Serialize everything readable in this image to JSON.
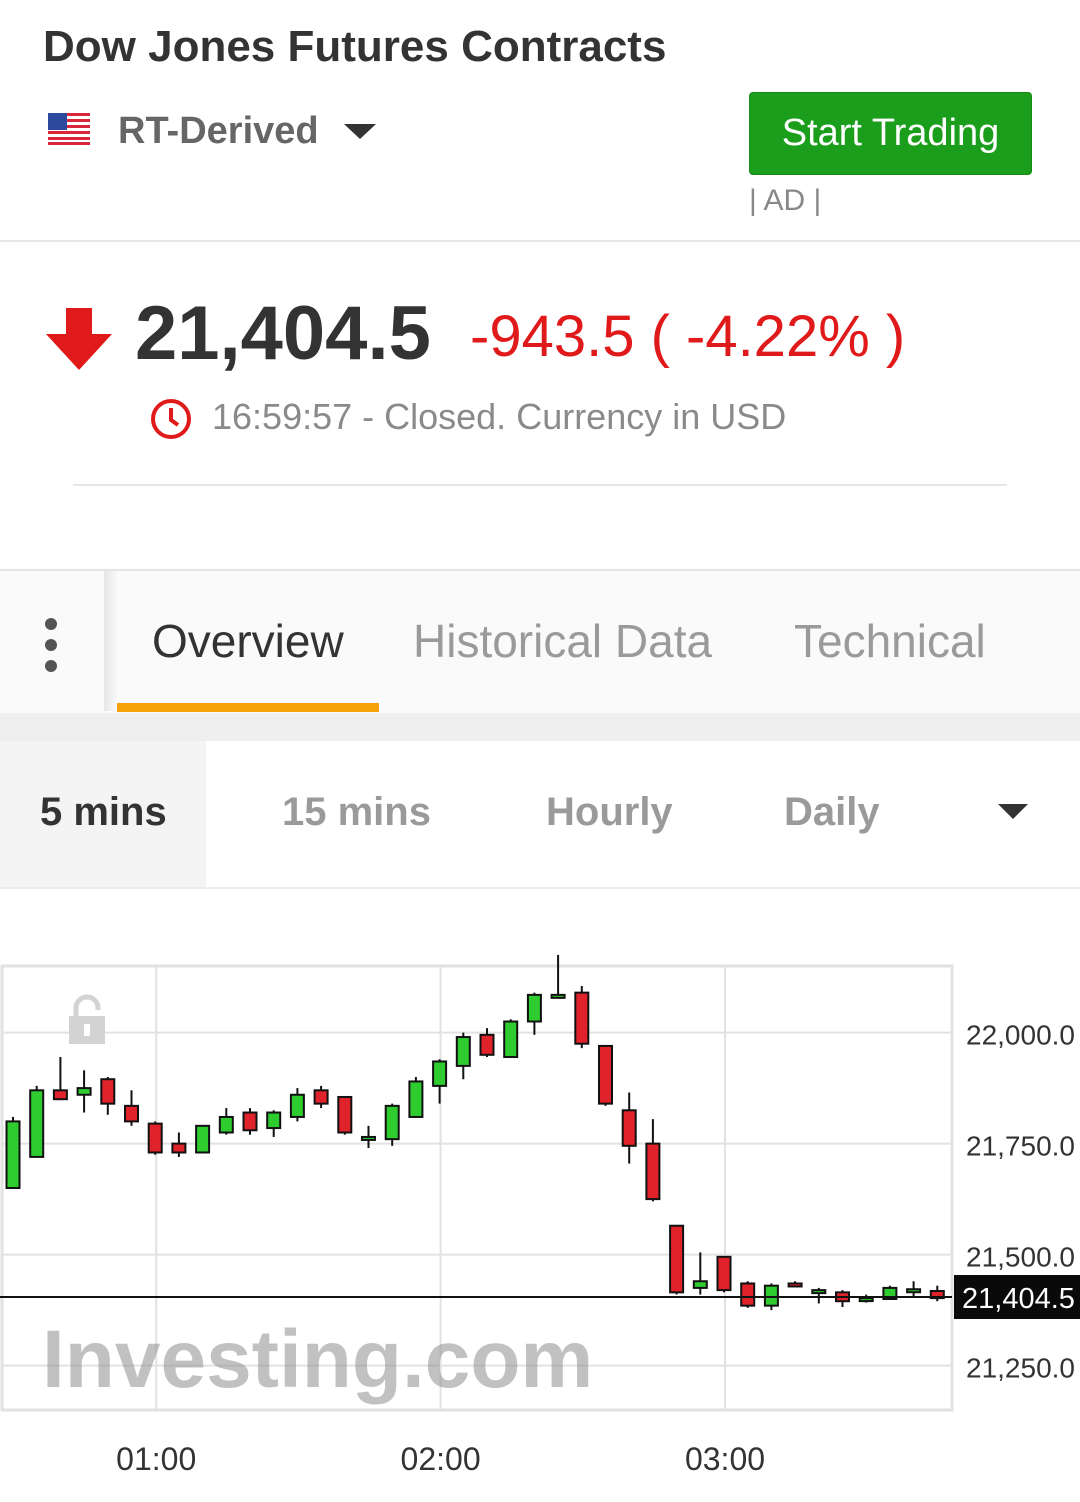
{
  "header": {
    "title": "Dow Jones Futures Contracts",
    "source": "RT-Derived",
    "trade_button": "Start Trading",
    "ad_label": "| AD |"
  },
  "quote": {
    "price": "21,404.5",
    "change": "-943.5 ( -4.22% )",
    "status": "16:59:57 - Closed. Currency in USD",
    "direction_color": "#e01a1a"
  },
  "tabs": [
    {
      "label": "Overview",
      "active": true
    },
    {
      "label": "Historical Data",
      "active": false
    },
    {
      "label": "Technical",
      "active": false
    }
  ],
  "timeframes": [
    {
      "label": "5 mins",
      "active": true
    },
    {
      "label": "15 mins",
      "active": false
    },
    {
      "label": "Hourly",
      "active": false
    },
    {
      "label": "Daily",
      "active": false
    }
  ],
  "colors": {
    "accent": "#f6a20a",
    "button": "#1b9e1b",
    "up": "#2ecc2e",
    "down": "#e0222a"
  },
  "icons": {
    "flag": "us-flag-icon",
    "caret": "caret-down-icon",
    "arrow": "arrow-down-icon",
    "clock": "clock-icon",
    "menu": "kebab-icon",
    "lock": "lock-icon"
  },
  "chart_data": {
    "type": "candlestick",
    "watermark": "Investing.com",
    "x_ticks": [
      "01:00",
      "02:00",
      "03:00"
    ],
    "y_ticks": [
      "22,000.0",
      "21,750.0",
      "21,500.0",
      "21,250.0"
    ],
    "ylim": [
      21150,
      22150
    ],
    "current_price": 21404.5,
    "current_price_label": "21,404.5",
    "grid": true,
    "candles": [
      {
        "t": "00:30",
        "o": 21650,
        "h": 21810,
        "l": 21650,
        "c": 21800
      },
      {
        "t": "00:35",
        "o": 21720,
        "h": 21880,
        "l": 21720,
        "c": 21870
      },
      {
        "t": "00:40",
        "o": 21870,
        "h": 21945,
        "l": 21850,
        "c": 21850
      },
      {
        "t": "00:45",
        "o": 21860,
        "h": 21915,
        "l": 21820,
        "c": 21875
      },
      {
        "t": "00:50",
        "o": 21895,
        "h": 21900,
        "l": 21815,
        "c": 21840
      },
      {
        "t": "00:55",
        "o": 21835,
        "h": 21870,
        "l": 21790,
        "c": 21800
      },
      {
        "t": "01:00",
        "o": 21795,
        "h": 21800,
        "l": 21725,
        "c": 21730
      },
      {
        "t": "01:05",
        "o": 21750,
        "h": 21775,
        "l": 21720,
        "c": 21730
      },
      {
        "t": "01:10",
        "o": 21730,
        "h": 21790,
        "l": 21730,
        "c": 21790
      },
      {
        "t": "01:15",
        "o": 21775,
        "h": 21830,
        "l": 21770,
        "c": 21810
      },
      {
        "t": "01:20",
        "o": 21820,
        "h": 21830,
        "l": 21770,
        "c": 21780
      },
      {
        "t": "01:25",
        "o": 21785,
        "h": 21825,
        "l": 21765,
        "c": 21820
      },
      {
        "t": "01:30",
        "o": 21810,
        "h": 21875,
        "l": 21800,
        "c": 21860
      },
      {
        "t": "01:35",
        "o": 21870,
        "h": 21880,
        "l": 21830,
        "c": 21840
      },
      {
        "t": "01:40",
        "o": 21855,
        "h": 21855,
        "l": 21770,
        "c": 21775
      },
      {
        "t": "01:45",
        "o": 21765,
        "h": 21790,
        "l": 21740,
        "c": 21765
      },
      {
        "t": "01:50",
        "o": 21760,
        "h": 21840,
        "l": 21745,
        "c": 21835
      },
      {
        "t": "01:55",
        "o": 21810,
        "h": 21900,
        "l": 21810,
        "c": 21890
      },
      {
        "t": "02:00",
        "o": 21880,
        "h": 21940,
        "l": 21840,
        "c": 21935
      },
      {
        "t": "02:05",
        "o": 21925,
        "h": 22000,
        "l": 21895,
        "c": 21990
      },
      {
        "t": "02:10",
        "o": 21995,
        "h": 22010,
        "l": 21945,
        "c": 21950
      },
      {
        "t": "02:15",
        "o": 21945,
        "h": 22030,
        "l": 21945,
        "c": 22025
      },
      {
        "t": "02:20",
        "o": 22025,
        "h": 22090,
        "l": 21995,
        "c": 22085
      },
      {
        "t": "02:25",
        "o": 22085,
        "h": 22175,
        "l": 22085,
        "c": 22085
      },
      {
        "t": "02:30",
        "o": 22090,
        "h": 22105,
        "l": 21965,
        "c": 21975
      },
      {
        "t": "02:35",
        "o": 21970,
        "h": 21970,
        "l": 21835,
        "c": 21840
      },
      {
        "t": "02:40",
        "o": 21825,
        "h": 21865,
        "l": 21705,
        "c": 21745
      },
      {
        "t": "02:45",
        "o": 21750,
        "h": 21805,
        "l": 21620,
        "c": 21625
      },
      {
        "t": "02:50",
        "o": 21565,
        "h": 21565,
        "l": 21410,
        "c": 21415
      },
      {
        "t": "02:55",
        "o": 21425,
        "h": 21505,
        "l": 21410,
        "c": 21440
      },
      {
        "t": "03:00",
        "o": 21495,
        "h": 21495,
        "l": 21415,
        "c": 21420
      },
      {
        "t": "03:05",
        "o": 21435,
        "h": 21440,
        "l": 21380,
        "c": 21385
      },
      {
        "t": "03:10",
        "o": 21385,
        "h": 21435,
        "l": 21375,
        "c": 21430
      },
      {
        "t": "03:15",
        "o": 21435,
        "h": 21440,
        "l": 21430,
        "c": 21432
      },
      {
        "t": "03:20",
        "o": 21420,
        "h": 21425,
        "l": 21390,
        "c": 21420
      },
      {
        "t": "03:25",
        "o": 21415,
        "h": 21420,
        "l": 21382,
        "c": 21395
      },
      {
        "t": "03:30",
        "o": 21400,
        "h": 21410,
        "l": 21392,
        "c": 21402
      },
      {
        "t": "03:35",
        "o": 21400,
        "h": 21430,
        "l": 21398,
        "c": 21425
      },
      {
        "t": "03:40",
        "o": 21420,
        "h": 21440,
        "l": 21405,
        "c": 21422
      },
      {
        "t": "03:45",
        "o": 21418,
        "h": 21430,
        "l": 21395,
        "c": 21402
      }
    ]
  }
}
